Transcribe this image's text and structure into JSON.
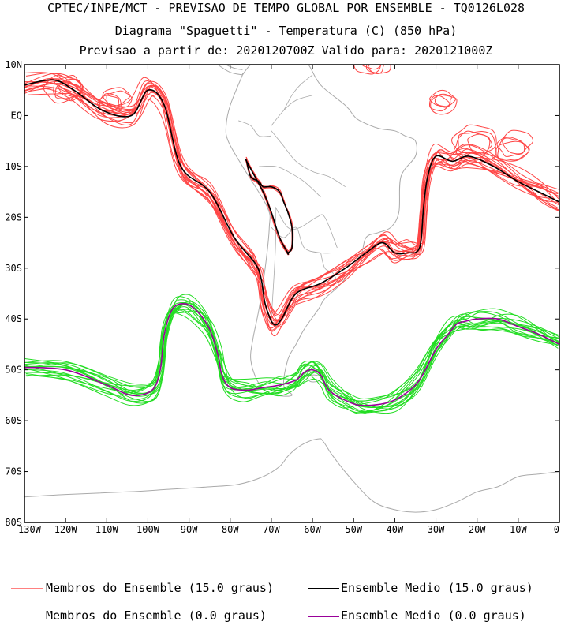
{
  "header": {
    "line1": "CPTEC/INPE/MCT - PREVISAO DE TEMPO GLOBAL POR ENSEMBLE - TQ0126L028",
    "line2": "Diagrama \"Spaguetti\" - Temperatura (C) (850 hPa)",
    "line3": "Previsao a partir de: 2020120700Z  Valido para: 2020121000Z"
  },
  "chart_data": {
    "type": "line",
    "title": "Diagrama \"Spaguetti\" - Temperatura (C) (850 hPa)",
    "xlabel": "",
    "ylabel": "",
    "xlim": [
      -130,
      0
    ],
    "ylim": [
      -80,
      10
    ],
    "x_ticks": [
      "130W",
      "120W",
      "110W",
      "100W",
      "90W",
      "80W",
      "70W",
      "60W",
      "50W",
      "40W",
      "30W",
      "20W",
      "10W",
      "0"
    ],
    "y_ticks": [
      "10N",
      "EQ",
      "10S",
      "20S",
      "30S",
      "40S",
      "50S",
      "60S",
      "70S",
      "80S"
    ],
    "x_tick_values": [
      -130,
      -120,
      -110,
      -100,
      -90,
      -80,
      -70,
      -60,
      -50,
      -40,
      -30,
      -20,
      -10,
      0
    ],
    "y_tick_values": [
      10,
      0,
      -10,
      -20,
      -30,
      -40,
      -50,
      -60,
      -70,
      -80
    ],
    "colors": {
      "members_15": "#ff4444",
      "mean_15": "#000000",
      "members_0": "#22dd22",
      "mean_0": "#990099",
      "coast": "#aaaaaa"
    },
    "series": [
      {
        "name": "Ensemble Medio (15.0 graus)",
        "x": [
          -130,
          -123,
          -118,
          -111,
          -104,
          -100,
          -96,
          -92,
          -85,
          -79,
          -74,
          -72.5,
          -71.5,
          -69.5,
          -67.5,
          -64,
          -58,
          -52,
          -47,
          -43,
          -40,
          -37,
          -34,
          -33,
          -32,
          -30,
          -26,
          -22,
          -16,
          -10,
          -5,
          0
        ],
        "y": [
          6,
          7,
          5,
          1,
          0,
          5,
          2,
          -10,
          -15,
          -24,
          -29,
          -32,
          -37,
          -41,
          -40,
          -35,
          -33,
          -30,
          -27,
          -25,
          -27,
          -27,
          -26,
          -18,
          -12,
          -8,
          -9,
          -8,
          -10,
          -13,
          -15,
          -17
        ]
      },
      {
        "name": "Ensemble Medio (15.0 graus) - contorno interior",
        "x": [
          -76,
          -75,
          -73,
          -72,
          -70,
          -68,
          -67,
          -66,
          -65,
          -65,
          -66,
          -66,
          -68,
          -70,
          -72,
          -74,
          -76
        ],
        "y": [
          -9,
          -12,
          -13,
          -14,
          -14,
          -15,
          -17,
          -19,
          -22,
          -26,
          -27,
          -27,
          -24,
          -19,
          -15,
          -12,
          -9
        ]
      },
      {
        "name": "Ensemble Medio (0.0 graus)",
        "x": [
          -130,
          -120,
          -110,
          -104,
          -99,
          -97,
          -96,
          -94,
          -91,
          -88,
          -85,
          -83,
          -82,
          -80,
          -76,
          -72,
          -68,
          -64,
          -62,
          -60,
          -58,
          -56,
          -52,
          -48,
          -42,
          -38,
          -34,
          -30,
          -27,
          -25,
          -23,
          -20,
          -15,
          -10,
          -5,
          0
        ],
        "y": [
          -49.5,
          -50,
          -53,
          -55,
          -54,
          -50,
          -43,
          -38,
          -37,
          -38.5,
          -42,
          -47,
          -51,
          -53.5,
          -54,
          -53.5,
          -53,
          -52,
          -50.5,
          -50,
          -51,
          -54,
          -56,
          -57,
          -56.5,
          -55,
          -52,
          -46,
          -43,
          -41,
          -40.5,
          -40,
          -40,
          -41.5,
          -43,
          -45
        ]
      }
    ],
    "ensemble_members": [
      {
        "name": "Membros do Ensemble (15.0 graus)",
        "count": 15
      },
      {
        "name": "Membros do Ensemble (0.0 graus)",
        "count": 15
      }
    ],
    "legend": [
      {
        "label": "Membros do Ensemble (15.0 graus)",
        "color": "#ff8080"
      },
      {
        "label": "Ensemble Medio (15.0 graus)",
        "color": "#000000"
      },
      {
        "label": "Membros do Ensemble (0.0 graus)",
        "color": "#22dd22"
      },
      {
        "label": "Ensemble Medio (0.0 graus)",
        "color": "#990099"
      }
    ]
  }
}
